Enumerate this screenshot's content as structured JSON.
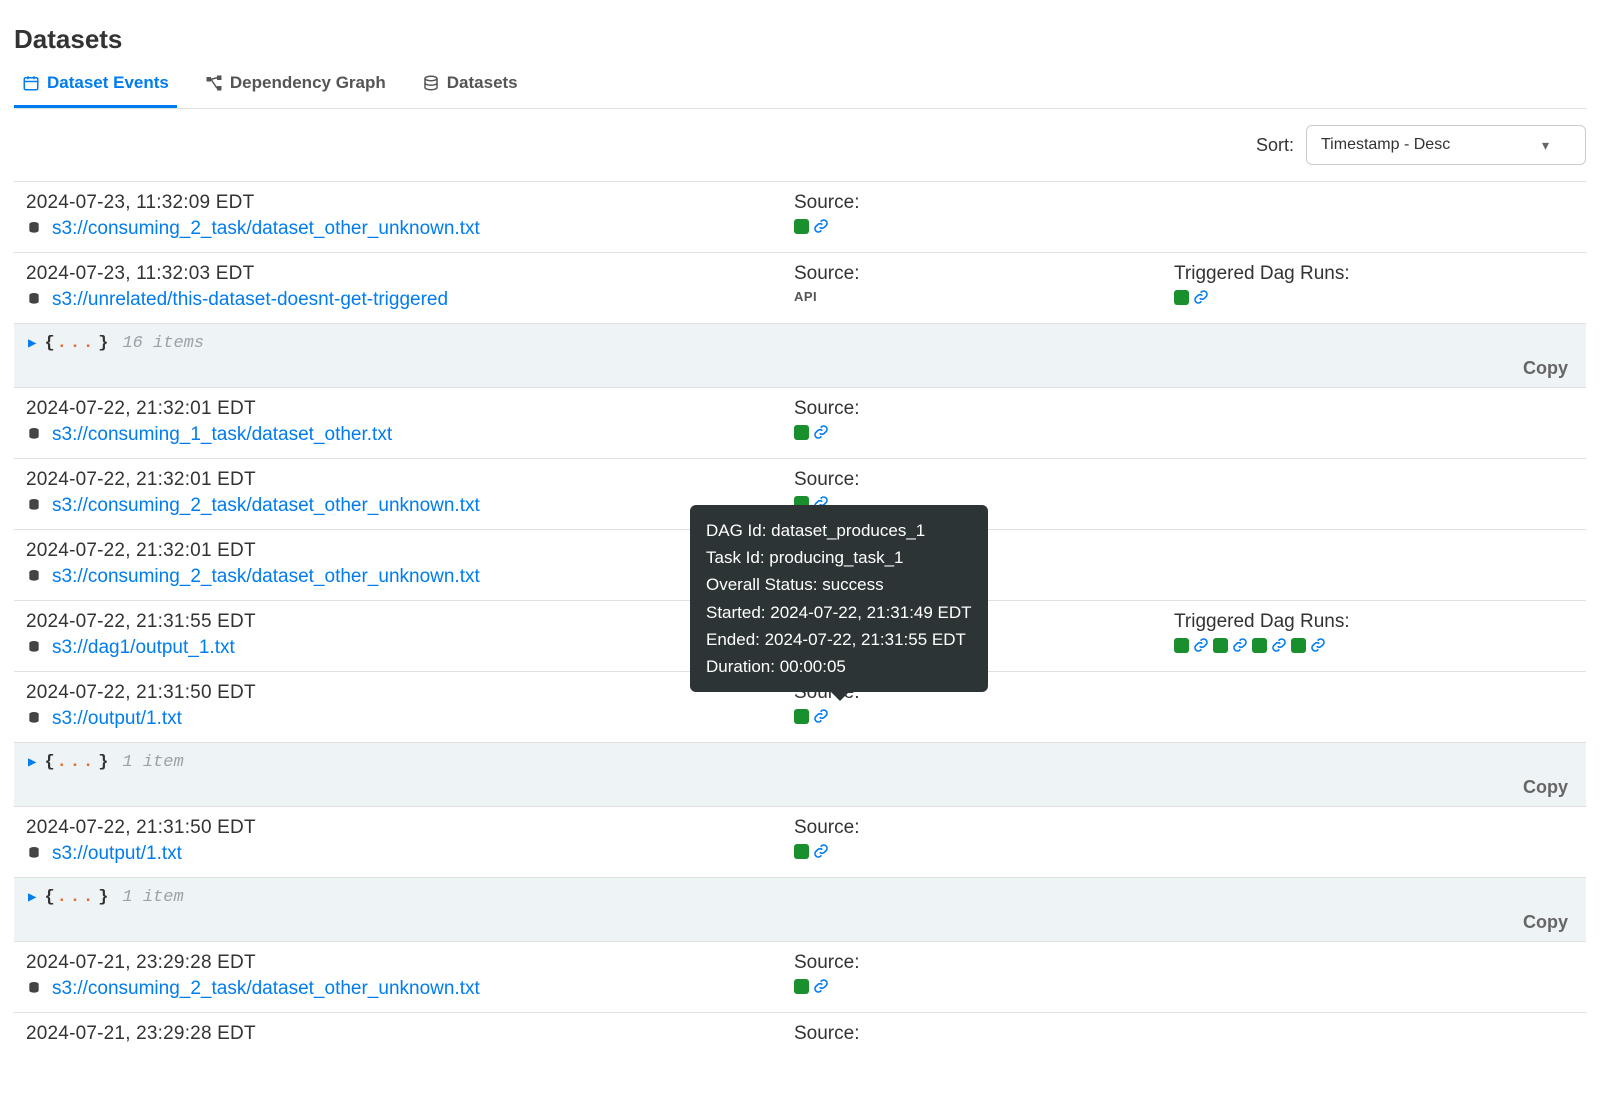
{
  "page_title": "Datasets",
  "tabs": [
    {
      "label": "Dataset Events",
      "active": true,
      "icon": "calendar"
    },
    {
      "label": "Dependency Graph",
      "active": false,
      "icon": "graph"
    },
    {
      "label": "Datasets",
      "active": false,
      "icon": "stack"
    }
  ],
  "sort": {
    "label": "Sort:",
    "selected": "Timestamp - Desc"
  },
  "labels": {
    "source": "Source:",
    "triggered": "Triggered Dag Runs:",
    "copy": "Copy",
    "api": "API"
  },
  "colors": {
    "link": "#017cee",
    "success": "#1a8f2d",
    "payload_bg": "#eef3f6",
    "tooltip_bg": "#2d3436"
  },
  "tooltip": {
    "lines": [
      "DAG Id: dataset_produces_1",
      "Task Id: producing_task_1",
      "Overall Status: success",
      "Started: 2024-07-22, 21:31:49 EDT",
      "Ended: 2024-07-22, 21:31:55 EDT",
      "Duration: 00:00:05"
    ]
  },
  "events": [
    {
      "ts": "2024-07-23, 11:32:09 EDT",
      "uri": "s3://consuming_2_task/dataset_other_unknown.txt",
      "source": {
        "type": "badge",
        "count": 1
      },
      "triggered": null,
      "payload": null
    },
    {
      "ts": "2024-07-23, 11:32:03 EDT",
      "uri": "s3://unrelated/this-dataset-doesnt-get-triggered",
      "source": {
        "type": "api"
      },
      "triggered": {
        "count": 1
      },
      "payload": {
        "items_label": "16 items"
      }
    },
    {
      "ts": "2024-07-22, 21:32:01 EDT",
      "uri": "s3://consuming_1_task/dataset_other.txt",
      "source": {
        "type": "badge",
        "count": 1
      },
      "triggered": null,
      "payload": null
    },
    {
      "ts": "2024-07-22, 21:32:01 EDT",
      "uri": "s3://consuming_2_task/dataset_other_unknown.txt",
      "source": {
        "type": "badge",
        "count": 1
      },
      "triggered": null,
      "payload": null
    },
    {
      "ts": "2024-07-22, 21:32:01 EDT",
      "uri": "s3://consuming_2_task/dataset_other_unknown.txt",
      "source": {
        "type": "badge",
        "count": 1
      },
      "triggered": null,
      "payload": null
    },
    {
      "ts": "2024-07-22, 21:31:55 EDT",
      "uri": "s3://dag1/output_1.txt",
      "source": {
        "type": "badge",
        "count": 1
      },
      "triggered": {
        "count": 4
      },
      "payload": null
    },
    {
      "ts": "2024-07-22, 21:31:50 EDT",
      "uri": "s3://output/1.txt",
      "source": {
        "type": "badge",
        "count": 1
      },
      "triggered": null,
      "payload": {
        "items_label": "1 item"
      }
    },
    {
      "ts": "2024-07-22, 21:31:50 EDT",
      "uri": "s3://output/1.txt",
      "source": {
        "type": "badge",
        "count": 1
      },
      "triggered": null,
      "payload": {
        "items_label": "1 item"
      }
    },
    {
      "ts": "2024-07-21, 23:29:28 EDT",
      "uri": "s3://consuming_2_task/dataset_other_unknown.txt",
      "source": {
        "type": "badge",
        "count": 1
      },
      "triggered": null,
      "payload": null
    },
    {
      "ts": "2024-07-21, 23:29:28 EDT",
      "uri": "",
      "source": {
        "type": "label-only"
      },
      "triggered": null,
      "payload": null,
      "cutoff": true
    }
  ]
}
